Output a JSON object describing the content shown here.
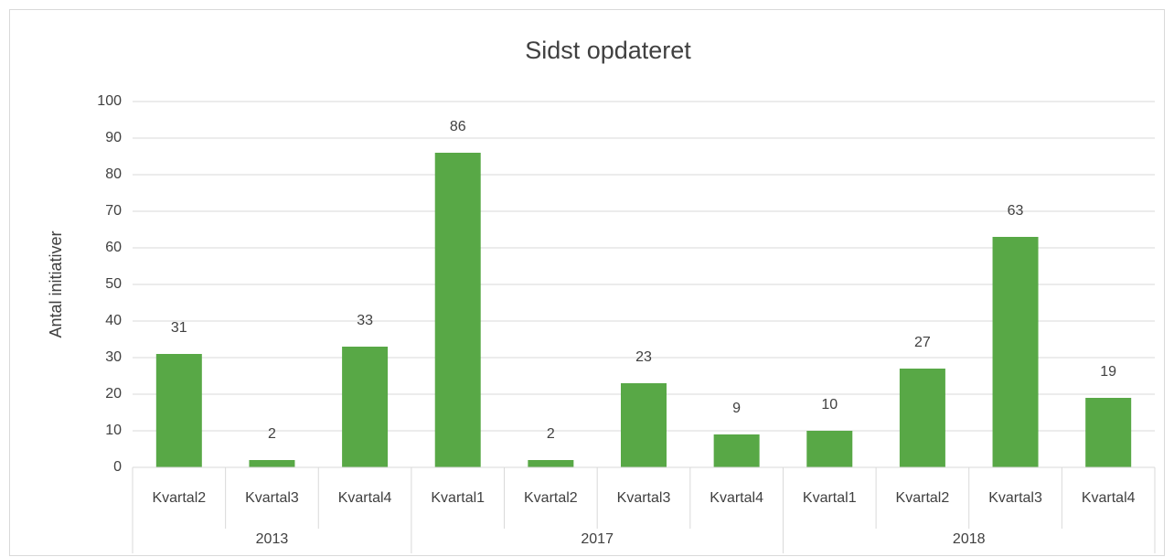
{
  "chart_data": {
    "type": "bar",
    "title": "Sidst opdateret",
    "y_label": "Antal initiativer",
    "categories": [
      "Kvartal2",
      "Kvartal3",
      "Kvartal4",
      "Kvartal1",
      "Kvartal2",
      "Kvartal3",
      "Kvartal4",
      "Kvartal1",
      "Kvartal2",
      "Kvartal3",
      "Kvartal4"
    ],
    "groups": [
      {
        "label": "2013",
        "size": 3
      },
      {
        "label": "2017",
        "size": 4
      },
      {
        "label": "2018",
        "size": 4
      }
    ],
    "values": [
      31,
      2,
      33,
      86,
      2,
      23,
      9,
      10,
      27,
      63,
      19
    ],
    "color": "#58a846",
    "ylim": [
      0,
      100
    ],
    "yticks": [
      0,
      10,
      20,
      30,
      40,
      50,
      60,
      70,
      80,
      90,
      100
    ],
    "grid": true
  }
}
